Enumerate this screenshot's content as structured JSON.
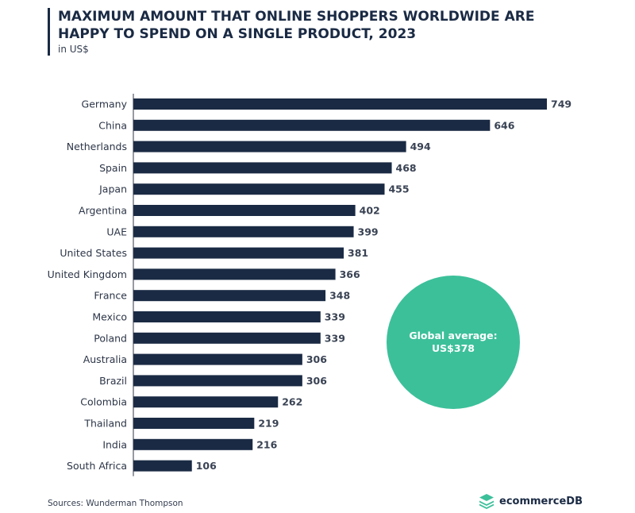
{
  "header": {
    "title": "MAXIMUM AMOUNT THAT ONLINE SHOPPERS WORLDWIDE ARE\nHAPPY TO SPEND ON A SINGLE PRODUCT, 2023",
    "subtitle": "in US$"
  },
  "chart_data": {
    "type": "bar",
    "orientation": "horizontal",
    "title": "MAXIMUM AMOUNT THAT ONLINE SHOPPERS WORLDWIDE ARE HAPPY TO SPEND ON A SINGLE PRODUCT, 2023",
    "subtitle": "in US$",
    "categories": [
      "Germany",
      "China",
      "Netherlands",
      "Spain",
      "Japan",
      "Argentina",
      "UAE",
      "United States",
      "United Kingdom",
      "France",
      "Mexico",
      "Poland",
      "Australia",
      "Brazil",
      "Colombia",
      "Thailand",
      "India",
      "South Africa"
    ],
    "values": [
      749,
      646,
      494,
      468,
      455,
      402,
      399,
      381,
      366,
      348,
      339,
      339,
      306,
      306,
      262,
      219,
      216,
      106
    ],
    "xlim": [
      0,
      749
    ],
    "grid": false,
    "bar_color": "#1a2a44",
    "annotation": {
      "line1": "Global average:",
      "line2": "US$378",
      "color": "#3cc09a"
    }
  },
  "footer": {
    "source": "Sources: Wunderman Thompson",
    "brand": "ecommerceDB",
    "brand_icon": "layers-icon",
    "brand_color": "#3cc09a"
  }
}
